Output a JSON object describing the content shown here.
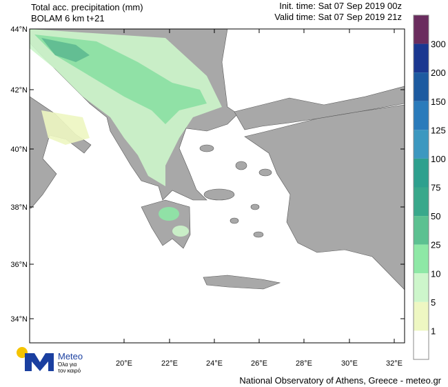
{
  "header": {
    "title": "Total acc. precipitation (mm)",
    "model": "BOLAM 6 km t+21",
    "init_time": "Init. time: Sat 07 Sep 2019 00z",
    "valid_time": "Valid time: Sat 07 Sep 2019 21z"
  },
  "map": {
    "lat_labels": [
      "44°N",
      "42°N",
      "40°N",
      "38°N",
      "36°N",
      "34°N"
    ],
    "lon_labels": [
      "20°E",
      "22°E",
      "24°E",
      "26°E",
      "28°E",
      "30°E",
      "32°E"
    ]
  },
  "colorbar": {
    "labels": [
      "300",
      "200",
      "150",
      "125",
      "100",
      "75",
      "50",
      "25",
      "10",
      "5",
      "1"
    ],
    "colors": [
      "#6a2c5e",
      "#1a3790",
      "#1c5aa0",
      "#2a7bbb",
      "#3c98c0",
      "#2ea08e",
      "#39a88b",
      "#5cc191",
      "#8ee8a6",
      "#cdf6cb",
      "#eef7c2",
      "#ffffff"
    ]
  },
  "logo": {
    "name": "Meteo",
    "tagline_1": "Όλα για",
    "tagline_2": "τον καιρό"
  },
  "footer": "National Observatory of Athens, Greece - meteo.gr"
}
